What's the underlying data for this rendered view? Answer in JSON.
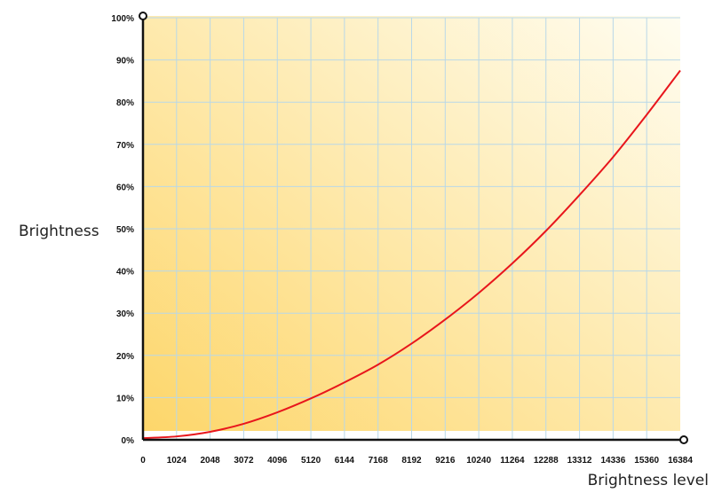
{
  "chart_data": {
    "type": "line",
    "title": "",
    "xlabel": "Brightness level",
    "ylabel": "Brightness",
    "xlim": [
      0,
      16384
    ],
    "ylim": [
      0,
      100
    ],
    "x_ticks": [
      "0",
      "1024",
      "2048",
      "3072",
      "4096",
      "5120",
      "6144",
      "7168",
      "8192",
      "9216",
      "10240",
      "11264",
      "12288",
      "13312",
      "14336",
      "15360",
      "16384"
    ],
    "y_ticks": [
      "0%",
      "10%",
      "20%",
      "30%",
      "40%",
      "50%",
      "60%",
      "70%",
      "80%",
      "90%",
      "100%"
    ],
    "grid": true,
    "legend": "none",
    "series": [
      {
        "color": "#e8161c",
        "x": [
          0,
          1024,
          2048,
          3072,
          4096,
          5120,
          6144,
          7168,
          8192,
          9216,
          10240,
          11264,
          12288,
          13312,
          14336,
          15360,
          16384
        ],
        "y": [
          0.4,
          0.8,
          1.9,
          3.8,
          6.5,
          9.8,
          13.6,
          17.8,
          22.8,
          28.5,
          34.8,
          41.8,
          49.5,
          58.0,
          67.0,
          77.0,
          87.5
        ]
      }
    ],
    "colors": {
      "fill_dark": "#fdd66a",
      "fill_light": "#fffdf1",
      "grid": "#b9d8e8",
      "axis": "#111111"
    }
  }
}
